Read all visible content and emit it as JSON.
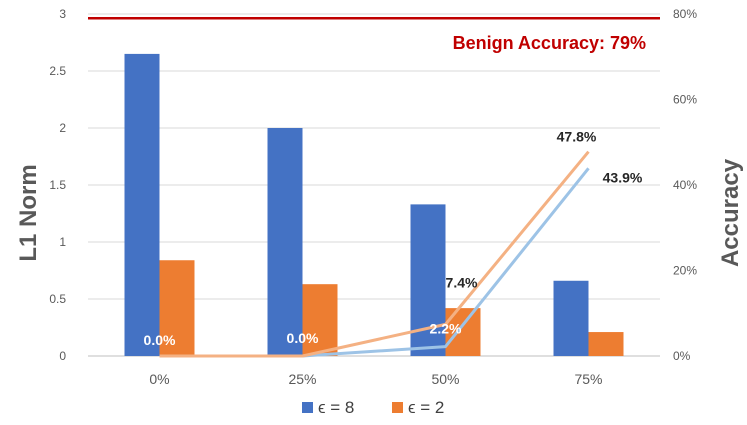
{
  "chart_data": {
    "type": "bar",
    "categories": [
      "0%",
      "25%",
      "50%",
      "75%"
    ],
    "ylabel": "L1 Norm",
    "ylabel_right": "Accuracy",
    "ylim": [
      0,
      3
    ],
    "y_ticks": [
      "0",
      "0.5",
      "1",
      "1.5",
      "2",
      "2.5",
      "3"
    ],
    "ylim_right": [
      0,
      80
    ],
    "y_ticks_right": [
      "0%",
      "20%",
      "40%",
      "60%",
      "80%"
    ],
    "series": [
      {
        "name": "ϵ = 8",
        "color": "#4472C4",
        "values": [
          2.65,
          2.0,
          1.33,
          0.66
        ]
      },
      {
        "name": "ϵ = 2",
        "color": "#ED7D31",
        "values": [
          0.84,
          0.63,
          0.42,
          0.21
        ]
      }
    ],
    "line_series": [
      {
        "color": "#F4B183",
        "values": [
          0.0,
          0.0,
          7.4,
          47.8
        ],
        "labels": [
          "0.0%",
          "0.0%",
          "7.4%",
          "47.8%"
        ]
      },
      {
        "color": "#9DC3E6",
        "values": [
          0.0,
          0.0,
          2.2,
          43.9
        ],
        "labels": [
          "",
          "",
          "2.2%",
          "43.9%"
        ]
      }
    ],
    "benign": {
      "label": "Benign Accuracy: 79%",
      "value": 79,
      "color": "#C00000"
    },
    "grid": true,
    "legend_position": "bottom"
  }
}
